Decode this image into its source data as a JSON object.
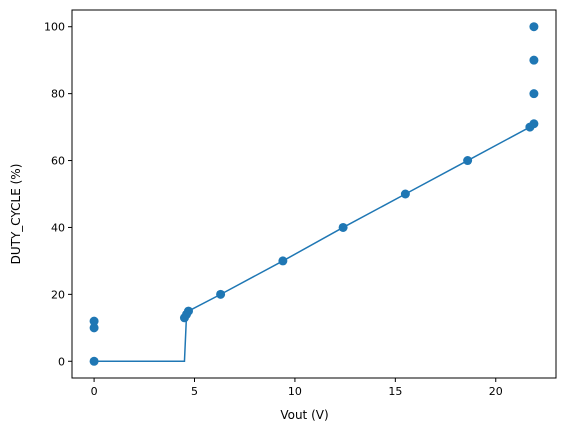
{
  "chart_data": {
    "type": "scatter",
    "title": "",
    "xlabel": "Vout (V)",
    "ylabel": "DUTY_CYCLE (%)",
    "xlim": [
      -1.1,
      23.0
    ],
    "ylim": [
      -5,
      105
    ],
    "xticks": [
      0,
      5,
      10,
      15,
      20
    ],
    "yticks": [
      0,
      20,
      40,
      60,
      80,
      100
    ],
    "grid": false,
    "series": [
      {
        "kind": "line",
        "color": "#1f77b4",
        "x": [
          0.0,
          4.5,
          4.6,
          4.7,
          6.3,
          9.4,
          12.4,
          15.5,
          18.6,
          21.7
        ],
        "y": [
          0,
          0,
          13.5,
          15,
          20,
          30,
          40,
          50,
          60,
          70
        ]
      },
      {
        "kind": "scatter",
        "color": "#1f77b4",
        "x": [
          0.0,
          0.0,
          0.0,
          4.5,
          4.6,
          4.7,
          6.3,
          9.4,
          12.4,
          15.5,
          18.6,
          21.7,
          21.9,
          21.9,
          21.9,
          21.9
        ],
        "y": [
          0,
          10,
          12,
          13,
          14,
          15,
          20,
          30,
          40,
          50,
          60,
          70,
          71,
          80,
          90,
          100
        ]
      }
    ]
  }
}
